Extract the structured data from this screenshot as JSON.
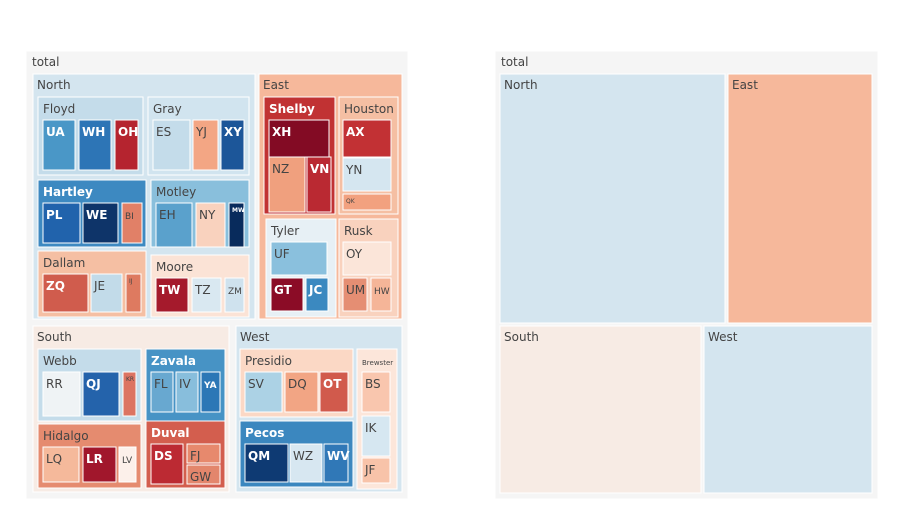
{
  "chart_data": [
    {
      "type": "treemap",
      "root": "total",
      "regions": [
        {
          "name": "North",
          "counties": [
            {
              "name": "Floyd",
              "cells": [
                {
                  "label": "UA",
                  "color": "#4a97c7"
                },
                {
                  "label": "WH",
                  "color": "#2d75b6"
                },
                {
                  "label": "OH",
                  "color": "#b5242f"
                }
              ]
            },
            {
              "name": "Gray",
              "cells": [
                {
                  "label": "ES",
                  "color": "#c4dcea"
                },
                {
                  "label": "YJ",
                  "color": "#f3a684"
                },
                {
                  "label": "XY",
                  "color": "#1c5699"
                }
              ]
            },
            {
              "name": "Hartley",
              "cells": [
                {
                  "label": "PL",
                  "color": "#2163ac"
                },
                {
                  "label": "WE",
                  "color": "#0e3469"
                },
                {
                  "label": "BI",
                  "color": "#e18067"
                }
              ]
            },
            {
              "name": "Motley",
              "cells": [
                {
                  "label": "EH",
                  "color": "#5aa1cc"
                },
                {
                  "label": "NY",
                  "color": "#f9d2be"
                },
                {
                  "label": "MW",
                  "color": "#082b5c"
                }
              ]
            },
            {
              "name": "Dallam",
              "cells": [
                {
                  "label": "ZQ",
                  "color": "#d05c4d"
                },
                {
                  "label": "JE",
                  "color": "#c2dbe9"
                },
                {
                  "label": "IJ",
                  "color": "#de7a60"
                }
              ]
            },
            {
              "name": "Moore",
              "cells": [
                {
                  "label": "TW",
                  "color": "#a51a2c"
                },
                {
                  "label": "TZ",
                  "color": "#d9e8f1"
                },
                {
                  "label": "ZM",
                  "color": "#cfe2ee"
                }
              ]
            }
          ]
        },
        {
          "name": "East",
          "counties": [
            {
              "name": "Shelby",
              "cells": [
                {
                  "label": "XH",
                  "color": "#830b24"
                },
                {
                  "label": "NZ",
                  "color": "#f0a07e"
                },
                {
                  "label": "VN",
                  "color": "#ba2932"
                }
              ]
            },
            {
              "name": "Houston",
              "cells": [
                {
                  "label": "AX",
                  "color": "#c23134"
                },
                {
                  "label": "YN",
                  "color": "#d5e6f0"
                },
                {
                  "label": "QK",
                  "color": "#f2a17f"
                }
              ]
            },
            {
              "name": "Tyler",
              "cells": [
                {
                  "label": "UF",
                  "color": "#8ac0dd"
                },
                {
                  "label": "GT",
                  "color": "#8b0c26"
                },
                {
                  "label": "JC",
                  "color": "#3b89c0"
                }
              ]
            },
            {
              "name": "Rusk",
              "cells": [
                {
                  "label": "OY",
                  "color": "#fbe5d9"
                },
                {
                  "label": "UM",
                  "color": "#e58e73"
                },
                {
                  "label": "HW",
                  "color": "#f5b598"
                }
              ]
            }
          ]
        },
        {
          "name": "South",
          "counties": [
            {
              "name": "Webb",
              "cells": [
                {
                  "label": "RR",
                  "color": "#eff3f5"
                },
                {
                  "label": "QJ",
                  "color": "#2463ab"
                },
                {
                  "label": "KR",
                  "color": "#dc7462"
                }
              ]
            },
            {
              "name": "Zavala",
              "cells": [
                {
                  "label": "FL",
                  "color": "#68a8d0"
                },
                {
                  "label": "IV",
                  "color": "#88bedc"
                },
                {
                  "label": "YA",
                  "color": "#2c77b6"
                }
              ]
            },
            {
              "name": "Hidalgo",
              "cells": [
                {
                  "label": "LQ",
                  "color": "#f5b99b"
                },
                {
                  "label": "LR",
                  "color": "#a1172c"
                },
                {
                  "label": "LV",
                  "color": "#fcf0ea"
                }
              ]
            },
            {
              "name": "Duval",
              "cells": [
                {
                  "label": "DS",
                  "color": "#bc2a33"
                },
                {
                  "label": "FJ",
                  "color": "#e7896d"
                },
                {
                  "label": "GW",
                  "color": "#e3866c"
                }
              ]
            }
          ]
        },
        {
          "name": "West",
          "counties": [
            {
              "name": "Presidio",
              "cells": [
                {
                  "label": "SV",
                  "color": "#acd2e5"
                },
                {
                  "label": "DQ",
                  "color": "#f2a584"
                },
                {
                  "label": "OT",
                  "color": "#d15a4c"
                }
              ]
            },
            {
              "name": "Brewster",
              "cells": [
                {
                  "label": "BS",
                  "color": "#f9c6ae"
                },
                {
                  "label": "IK",
                  "color": "#d6e7f1"
                },
                {
                  "label": "JF",
                  "color": "#f8c3a9"
                }
              ]
            },
            {
              "name": "Pecos",
              "cells": [
                {
                  "label": "QM",
                  "color": "#0e3a73"
                },
                {
                  "label": "WZ",
                  "color": "#d7e7f1"
                },
                {
                  "label": "WV",
                  "color": "#3078b7"
                }
              ]
            }
          ]
        }
      ]
    },
    {
      "type": "treemap",
      "root": "total",
      "regions": [
        {
          "name": "North",
          "color": "#d4e5ef"
        },
        {
          "name": "East",
          "color": "#f6b89b"
        },
        {
          "name": "South",
          "color": "#f7ebe4"
        },
        {
          "name": "West",
          "color": "#d4e5ef"
        }
      ]
    }
  ],
  "colors": {
    "root": "#f5f5f5",
    "north_fill": "#d4e5ef",
    "east_fill": "#f6b89b",
    "south_fill": "#f7ebe4",
    "west_fill": "#d4e5ef",
    "dark_text": "#444444",
    "light_text": "#ffffff"
  }
}
